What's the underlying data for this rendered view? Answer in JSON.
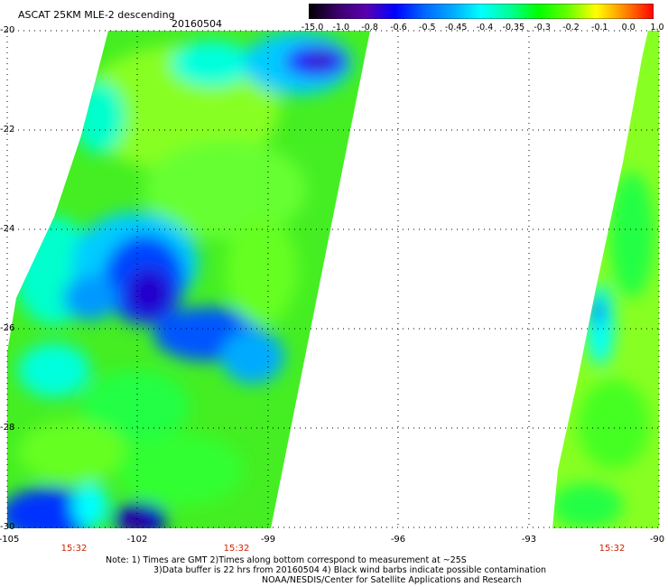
{
  "header": {
    "title": "ASCAT 25KM MLE-2 descending",
    "date": "20160504"
  },
  "colorbar": {
    "labels": [
      "-15.0",
      "-1.0",
      "-0.8",
      "-0.6",
      "-0.5",
      "-0.45",
      "-0.4",
      "-0.35",
      "-0.3",
      "-0.2",
      "-0.1",
      "0.0",
      "1.0"
    ],
    "colors": [
      "#000000",
      "#3a006a",
      "#5a00b0",
      "#0000ff",
      "#0066ff",
      "#00aaff",
      "#00ffff",
      "#00ff99",
      "#00ff00",
      "#66ff00",
      "#ffff00",
      "#ff8800",
      "#ff0000"
    ]
  },
  "axes": {
    "lat_ticks": [
      "-20",
      "-22",
      "-24",
      "-26",
      "-28",
      "-30"
    ],
    "lon_ticks": [
      "-105",
      "-102",
      "-99",
      "-96",
      "-93",
      "-90"
    ],
    "times": [
      "15:32",
      "15:32",
      "15:32"
    ]
  },
  "notes": {
    "line1": "Note: 1) Times are GMT 2)Times along bottom correspond to measurement at ~25S",
    "line2": "3)Data buffer is 22 hrs from 20160504 4) Black wind barbs indicate possible contamination",
    "line3": "NOAA/NESDIS/Center for Satellite Applications and Research"
  }
}
